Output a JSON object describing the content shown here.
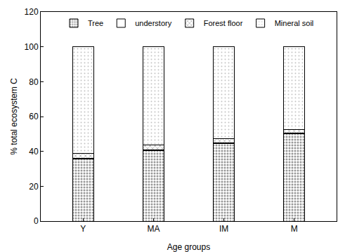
{
  "chart_data": {
    "type": "bar",
    "stacked": true,
    "x_label": "Age groups",
    "y_label": "% total ecosystem C",
    "categories": [
      "Y",
      "MA",
      "IM",
      "M"
    ],
    "series": [
      {
        "name": "Tree",
        "color": "#333333",
        "values": [
          35.5,
          40.5,
          44.5,
          50
        ]
      },
      {
        "name": "understory",
        "color": "#ffffff",
        "values": [
          0.5,
          0.5,
          0.5,
          0.5
        ]
      },
      {
        "name": "Forest floor",
        "color": "#333333",
        "values": [
          3,
          2.5,
          2.5,
          2
        ]
      },
      {
        "name": "Mineral soil",
        "color": "#888888",
        "values": [
          61,
          56.5,
          52.5,
          47.5
        ]
      }
    ],
    "ylim": [
      0,
      120
    ],
    "yticks": [
      0,
      20,
      40,
      60,
      80,
      100,
      120
    ],
    "grid": false,
    "legend": "upper center"
  }
}
